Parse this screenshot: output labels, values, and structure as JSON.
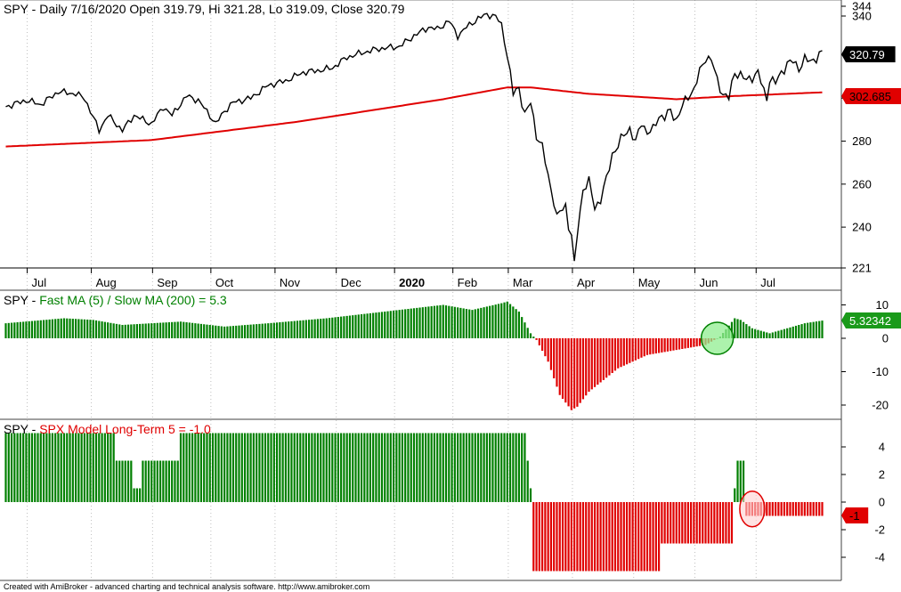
{
  "colors": {
    "up": "#008000",
    "down": "#e00000",
    "price": "#000000",
    "ma": "#e00000",
    "grid": "#c0c0c0",
    "axis": "#606060"
  },
  "xaxis": {
    "month_labels": [
      "Jul",
      "Aug",
      "Sep",
      "Oct",
      "Nov",
      "Dec",
      "2020",
      "Feb",
      "Mar",
      "Apr",
      "May",
      "Jun",
      "Jul"
    ],
    "month_bar_index": [
      11,
      33,
      54,
      74,
      96,
      117,
      137,
      157,
      176,
      198,
      219,
      240,
      261
    ]
  },
  "footer": "Created with AmiBroker - advanced charting and technical analysis software. http://www.amibroker.com",
  "chart_data": [
    {
      "type": "line",
      "panel": "price",
      "title": {
        "symbol": "SPY",
        "text": "Daily 7/16/2020 Open 319.79, Hi 321.28, Lo 319.09, Close 320.79"
      },
      "ylim": [
        221,
        344
      ],
      "y_ticks": [
        221,
        240,
        260,
        280,
        300,
        320,
        340,
        344
      ],
      "last_value_tags": [
        {
          "text": "320.79",
          "value": 320.79,
          "style": "black"
        },
        {
          "text": "302.685",
          "value": 302.685,
          "style": "red"
        }
      ],
      "close_anchors": [
        [
          0,
          296
        ],
        [
          7,
          299
        ],
        [
          12,
          297
        ],
        [
          18,
          303
        ],
        [
          24,
          302
        ],
        [
          27,
          300
        ],
        [
          32,
          285
        ],
        [
          35,
          292
        ],
        [
          40,
          285
        ],
        [
          44,
          292
        ],
        [
          50,
          288
        ],
        [
          54,
          296
        ],
        [
          57,
          292
        ],
        [
          62,
          301
        ],
        [
          66,
          299
        ],
        [
          70,
          292
        ],
        [
          72,
          288
        ],
        [
          75,
          294
        ],
        [
          78,
          298
        ],
        [
          84,
          300
        ],
        [
          90,
          306
        ],
        [
          96,
          308
        ],
        [
          102,
          312
        ],
        [
          108,
          313
        ],
        [
          112,
          314
        ],
        [
          117,
          319
        ],
        [
          122,
          321
        ],
        [
          128,
          323
        ],
        [
          135,
          324
        ],
        [
          140,
          329
        ],
        [
          145,
          333
        ],
        [
          148,
          332
        ],
        [
          152,
          336
        ],
        [
          155,
          329
        ],
        [
          158,
          333
        ],
        [
          162,
          337
        ],
        [
          165,
          339
        ],
        [
          168,
          338
        ],
        [
          170,
          334
        ],
        [
          172,
          320
        ],
        [
          174,
          302
        ],
        [
          176,
          305
        ],
        [
          178,
          292
        ],
        [
          180,
          298
        ],
        [
          182,
          283
        ],
        [
          184,
          277
        ],
        [
          186,
          264
        ],
        [
          188,
          252
        ],
        [
          189,
          244
        ],
        [
          190,
          247
        ],
        [
          192,
          250
        ],
        [
          193,
          241
        ],
        [
          194,
          236
        ],
        [
          195,
          222
        ],
        [
          196,
          237
        ],
        [
          198,
          258
        ],
        [
          200,
          261
        ],
        [
          202,
          249
        ],
        [
          204,
          253
        ],
        [
          206,
          262
        ],
        [
          208,
          274
        ],
        [
          210,
          278
        ],
        [
          212,
          283
        ],
        [
          214,
          286
        ],
        [
          216,
          279
        ],
        [
          218,
          289
        ],
        [
          220,
          284
        ],
        [
          222,
          285
        ],
        [
          224,
          292
        ],
        [
          226,
          291
        ],
        [
          228,
          294
        ],
        [
          230,
          290
        ],
        [
          232,
          296
        ],
        [
          234,
          301
        ],
        [
          236,
          304
        ],
        [
          238,
          312
        ],
        [
          240,
          319
        ],
        [
          242,
          318
        ],
        [
          244,
          308
        ],
        [
          246,
          302
        ],
        [
          248,
          300
        ],
        [
          250,
          312
        ],
        [
          252,
          311
        ],
        [
          254,
          308
        ],
        [
          256,
          310
        ],
        [
          258,
          312
        ],
        [
          260,
          303
        ],
        [
          261,
          300
        ],
        [
          262,
          309
        ],
        [
          264,
          307
        ],
        [
          266,
          312
        ],
        [
          268,
          316
        ],
        [
          270,
          317
        ],
        [
          272,
          314
        ],
        [
          274,
          318
        ],
        [
          276,
          317
        ],
        [
          278,
          319
        ],
        [
          280,
          321
        ]
      ],
      "ma200_anchors": [
        [
          0,
          277.5
        ],
        [
          50,
          280.5
        ],
        [
          100,
          289
        ],
        [
          150,
          299.5
        ],
        [
          172,
          305
        ],
        [
          180,
          305
        ],
        [
          200,
          302
        ],
        [
          230,
          299.5
        ],
        [
          250,
          301
        ],
        [
          280,
          302.7
        ]
      ]
    },
    {
      "type": "bar",
      "panel": "ma_ratio",
      "title": {
        "symbol": "SPY",
        "name": "Fast MA (5) / Slow MA (200)",
        "value_text": "= 5.3"
      },
      "ylim": [
        -22,
        12
      ],
      "y_ticks": [
        10,
        0,
        -10,
        -20
      ],
      "last_value_tags": [
        {
          "text": "5.32342",
          "value": 5.32342,
          "style": "green"
        }
      ],
      "value_anchors": [
        [
          0,
          4.5
        ],
        [
          20,
          6
        ],
        [
          30,
          5.5
        ],
        [
          40,
          4
        ],
        [
          60,
          5
        ],
        [
          75,
          3.5
        ],
        [
          90,
          4.5
        ],
        [
          110,
          6
        ],
        [
          130,
          8
        ],
        [
          150,
          10
        ],
        [
          160,
          8.5
        ],
        [
          170,
          10.5
        ],
        [
          172,
          11
        ],
        [
          176,
          8
        ],
        [
          180,
          1.5
        ],
        [
          182,
          -0.5
        ],
        [
          186,
          -7
        ],
        [
          190,
          -17
        ],
        [
          194,
          -21.5
        ],
        [
          196,
          -20.5
        ],
        [
          200,
          -16
        ],
        [
          210,
          -9
        ],
        [
          220,
          -5
        ],
        [
          240,
          -2
        ],
        [
          245,
          0.5
        ],
        [
          250,
          6
        ],
        [
          252,
          5.5
        ],
        [
          256,
          3
        ],
        [
          262,
          1.5
        ],
        [
          268,
          3
        ],
        [
          274,
          4.5
        ],
        [
          280,
          5.3
        ]
      ],
      "highlight_circle": {
        "bar_index": 244,
        "value": 0,
        "color": "green"
      }
    },
    {
      "type": "bar",
      "panel": "model",
      "title": {
        "symbol": "SPY",
        "name": "SPX Model Long-Term 5",
        "value_text": "= -1.0"
      },
      "ylim": [
        -5,
        5
      ],
      "y_ticks": [
        4,
        2,
        0,
        -2,
        -4
      ],
      "last_value_tags": [
        {
          "text": "-1",
          "value": -1,
          "style": "red"
        }
      ],
      "segments": [
        {
          "from": 0,
          "to": 37,
          "value": 5
        },
        {
          "from": 38,
          "to": 43,
          "value": 3
        },
        {
          "from": 44,
          "to": 46,
          "value": 1
        },
        {
          "from": 47,
          "to": 59,
          "value": 3
        },
        {
          "from": 60,
          "to": 178,
          "value": 5
        },
        {
          "from": 179,
          "to": 179,
          "value": 3
        },
        {
          "from": 180,
          "to": 180,
          "value": 1
        },
        {
          "from": 181,
          "to": 224,
          "value": -5
        },
        {
          "from": 225,
          "to": 249,
          "value": -3
        },
        {
          "from": 250,
          "to": 250,
          "value": 1
        },
        {
          "from": 251,
          "to": 253,
          "value": 3
        },
        {
          "from": 254,
          "to": 280,
          "value": -1
        }
      ],
      "highlight_circle": {
        "bar_index": 256,
        "value": -0.5,
        "color": "red"
      }
    }
  ]
}
